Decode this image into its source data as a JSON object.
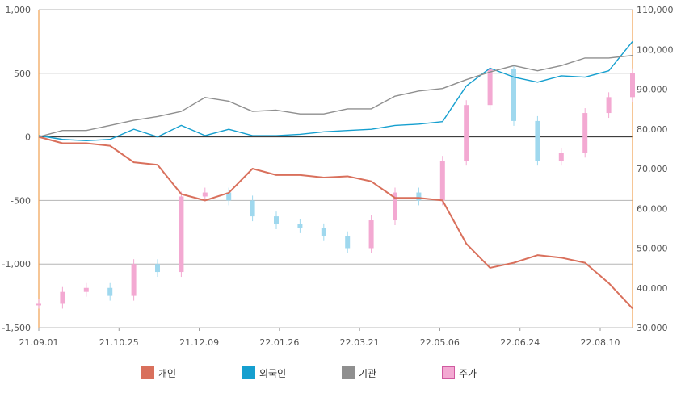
{
  "chart_data": {
    "type": "line",
    "title": "",
    "xlabel": "",
    "ylabel_left": "",
    "ylabel_right": "",
    "x_ticks": [
      "21.09.01",
      "21.10.25",
      "21.12.09",
      "22.01.26",
      "22.03.21",
      "22.05.06",
      "22.06.24",
      "22.08.10"
    ],
    "x": [
      "21.09.01",
      "21.09.15",
      "21.09.29",
      "21.10.13",
      "21.10.25",
      "21.11.08",
      "21.11.22",
      "21.12.09",
      "21.12.23",
      "22.01.10",
      "22.01.26",
      "22.02.09",
      "22.02.23",
      "22.03.08",
      "22.03.21",
      "22.04.04",
      "22.04.18",
      "22.05.06",
      "22.05.20",
      "22.06.03",
      "22.06.15",
      "22.06.24",
      "22.07.08",
      "22.07.22",
      "22.08.10",
      "22.08.24"
    ],
    "left_axis": {
      "ylim": [
        -1500,
        1000
      ],
      "ticks": [
        "1,000",
        "500",
        "0",
        "-500",
        "-1,000",
        "-1,500"
      ]
    },
    "right_axis": {
      "ylim": [
        30000,
        110000
      ],
      "ticks": [
        "110,000",
        "100,000",
        "90,000",
        "80,000",
        "70,000",
        "60,000",
        "50,000",
        "40,000",
        "30,000"
      ]
    },
    "legend_position": "bottom",
    "grid": true,
    "series": [
      {
        "name": "개인",
        "axis": "left",
        "color": "#d9705c",
        "values": [
          0,
          -50,
          -50,
          -70,
          -200,
          -220,
          -450,
          -500,
          -440,
          -250,
          -300,
          -300,
          -320,
          -310,
          -350,
          -480,
          -480,
          -500,
          -840,
          -1030,
          -990,
          -930,
          -950,
          -990,
          -1150,
          -1350
        ]
      },
      {
        "name": "외국인",
        "axis": "left",
        "color": "#159fcf",
        "values": [
          10,
          -20,
          -30,
          -20,
          60,
          0,
          90,
          10,
          60,
          10,
          10,
          20,
          40,
          50,
          60,
          90,
          100,
          120,
          400,
          540,
          470,
          430,
          480,
          470,
          520,
          750
        ]
      },
      {
        "name": "기관",
        "axis": "left",
        "color": "#8f8f8f",
        "values": [
          0,
          50,
          50,
          90,
          130,
          160,
          200,
          310,
          280,
          200,
          210,
          180,
          180,
          220,
          220,
          320,
          360,
          380,
          450,
          510,
          560,
          520,
          560,
          620,
          620,
          640
        ]
      },
      {
        "name": "주가",
        "axis": "right",
        "color": "#f3a9d2",
        "type": "candle",
        "values": [
          36000,
          39000,
          40000,
          38000,
          46000,
          44000,
          63000,
          64000,
          62000,
          58000,
          56000,
          55000,
          53000,
          50000,
          57000,
          64000,
          62000,
          72000,
          86000,
          95000,
          82000,
          72000,
          74000,
          84000,
          88000,
          94000
        ]
      }
    ]
  }
}
